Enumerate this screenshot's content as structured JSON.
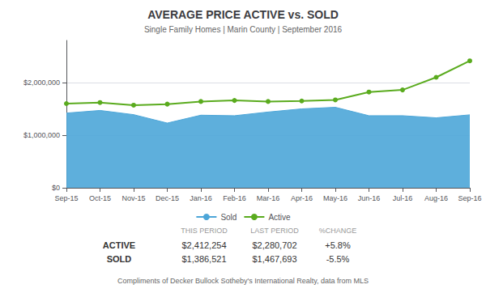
{
  "chart_data": {
    "type": "line",
    "title": "AVERAGE PRICE ACTIVE vs. SOLD",
    "subtitle": "Single Family Homes | Marin County | September 2016",
    "footer": "Compliments of Decker Bullock Sotheby's International Realty, data from MLS",
    "categories": [
      "Sep-15",
      "Oct-15",
      "Nov-15",
      "Dec-15",
      "Jan-16",
      "Feb-16",
      "Mar-16",
      "Apr-16",
      "May-16",
      "Jun-16",
      "Jul-16",
      "Aug-16",
      "Sep-16"
    ],
    "series": [
      {
        "name": "Sold",
        "type": "area",
        "color": "#4da6d8",
        "values": [
          1420000,
          1470000,
          1390000,
          1230000,
          1380000,
          1370000,
          1440000,
          1500000,
          1530000,
          1370000,
          1370000,
          1330000,
          1386521
        ]
      },
      {
        "name": "Active",
        "type": "line",
        "color": "#5aab1e",
        "marker": "circle",
        "values": [
          1600000,
          1620000,
          1570000,
          1590000,
          1640000,
          1660000,
          1640000,
          1650000,
          1670000,
          1820000,
          1860000,
          2100000,
          2412254
        ]
      }
    ],
    "ylim": [
      0,
      2800000
    ],
    "yticks": [
      {
        "value": 0,
        "label": "$0"
      },
      {
        "value": 1000000,
        "label": "$1,000,000"
      },
      {
        "value": 2000000,
        "label": "$2,000,000"
      }
    ],
    "grid": true,
    "legend": "bottom",
    "table": {
      "headers": [
        "THIS PERIOD",
        "LAST PERIOD",
        "%CHANGE"
      ],
      "rows": [
        [
          "ACTIVE",
          "$2,412,254",
          "$2,280,702",
          "+5.8%"
        ],
        [
          "SOLD",
          "$1,386,521",
          "$1,467,693",
          "-5.5%"
        ]
      ]
    }
  }
}
